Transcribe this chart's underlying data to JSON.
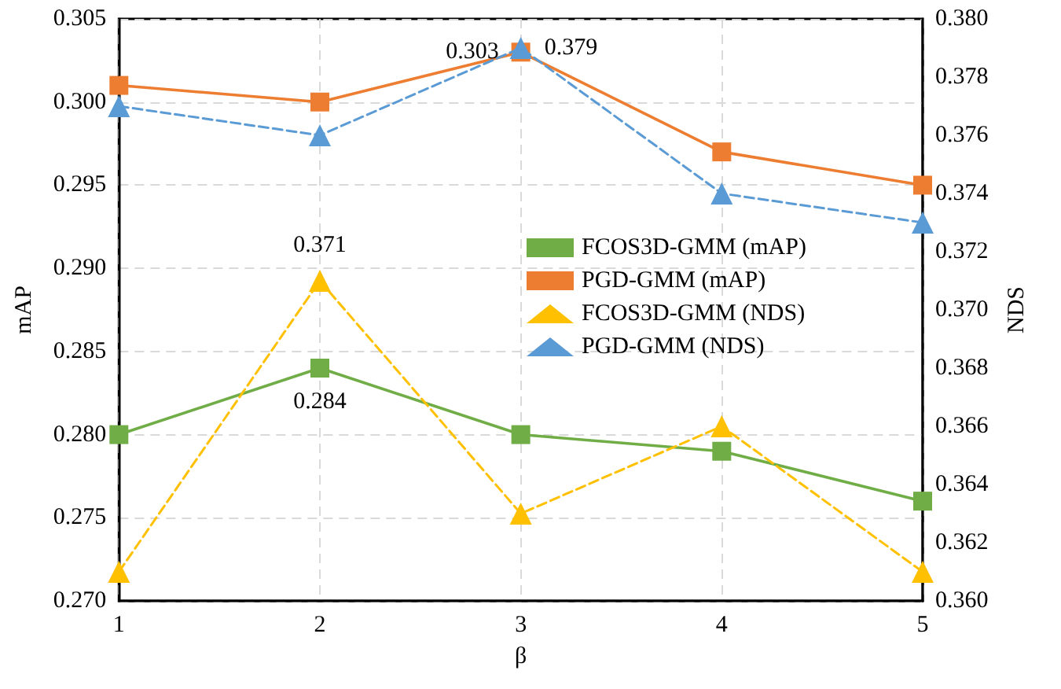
{
  "chart_data": {
    "type": "line",
    "xlabel": "β",
    "ylabel": "mAP",
    "y2label": "NDS",
    "x": [
      1,
      2,
      3,
      4,
      5
    ],
    "xlim": [
      1,
      5
    ],
    "xticks": [
      1,
      2,
      3,
      4,
      5
    ],
    "ylim": [
      0.27,
      0.305
    ],
    "yticks": [
      {
        "value": 0.27,
        "label": "0.270"
      },
      0.275,
      {
        "value": 0.28,
        "label": "0.280"
      },
      0.285,
      {
        "value": 0.29,
        "label": "0.290"
      },
      0.295,
      {
        "value": 0.3,
        "label": "0.300"
      },
      0.305
    ],
    "y2lim": [
      0.36,
      0.38
    ],
    "y2ticks": [
      {
        "value": 0.36,
        "label": "0.360"
      },
      0.362,
      0.364,
      0.366,
      0.368,
      {
        "value": 0.37,
        "label": "0.370"
      },
      0.372,
      0.374,
      0.376,
      0.378,
      {
        "value": 0.38,
        "label": "0.380"
      }
    ],
    "grid": true,
    "legend": "right",
    "series": [
      {
        "name": "FCOS3D-GMM (mAP)",
        "color": "#70ad47",
        "marker": "square",
        "line_style": "solid",
        "values": [
          0.28,
          0.284,
          0.28,
          0.279,
          0.276
        ],
        "value_labels": [
          null,
          "0.284",
          null,
          null,
          null
        ]
      },
      {
        "name": "PGD-GMM (mAP)",
        "color": "#ed7d31",
        "marker": "square",
        "line_style": "solid",
        "values": [
          0.301,
          0.3,
          0.303,
          0.297,
          0.295
        ],
        "value_labels": [
          null,
          null,
          "0.303",
          null,
          null
        ]
      },
      {
        "name": "FCOS3D-GMM (NDS)",
        "color": "#ffc000",
        "marker": "triangle",
        "line_style": "dashed",
        "axis": "y2",
        "values": [
          0.361,
          0.371,
          0.363,
          0.366,
          0.361
        ],
        "value_labels": [
          null,
          "0.371",
          null,
          null,
          null
        ]
      },
      {
        "name": "PGD-GMM (NDS)",
        "color": "#5b9bd5",
        "marker": "triangle",
        "line_style": "dashed",
        "axis": "y2",
        "values": [
          0.377,
          0.376,
          0.379,
          0.374,
          0.373
        ],
        "value_labels": [
          null,
          null,
          "0.379",
          null,
          null
        ]
      }
    ]
  }
}
